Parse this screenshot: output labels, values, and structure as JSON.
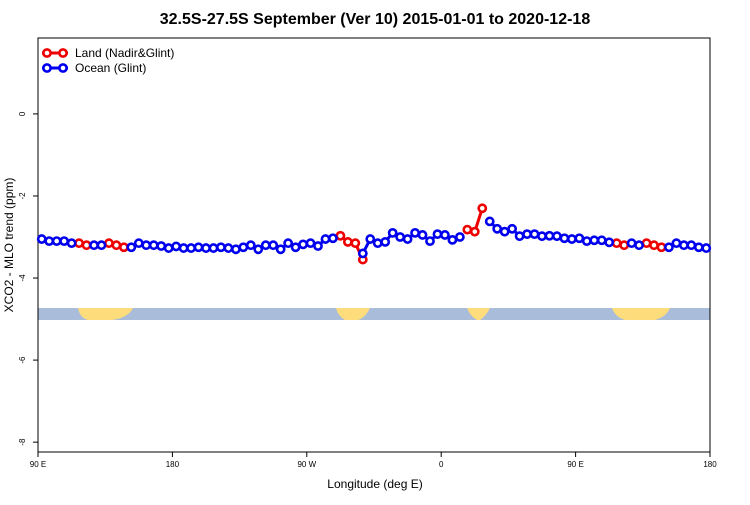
{
  "chart_data": {
    "type": "line",
    "title": "32.5S-27.5S September (Ver 10)   2015-01-01 to 2020-12-18",
    "x_label": "Longitude (deg E)",
    "y_label": "XCO2 - MLO trend (ppm)",
    "x": [
      92.5,
      97.5,
      102.5,
      107.5,
      112.5,
      117.5,
      122.5,
      127.5,
      132.5,
      137.5,
      142.5,
      147.5,
      152.5,
      157.5,
      162.5,
      167.5,
      172.5,
      177.5,
      182.5,
      187.5,
      192.5,
      197.5,
      202.5,
      207.5,
      212.5,
      217.5,
      222.5,
      227.5,
      232.5,
      237.5,
      242.5,
      247.5,
      252.5,
      257.5,
      262.5,
      267.5,
      272.5,
      277.5,
      282.5,
      287.5,
      292.5,
      297.5,
      302.5,
      307.5,
      312.5,
      317.5,
      322.5,
      327.5,
      332.5,
      337.5,
      342.5,
      347.5,
      352.5,
      357.5,
      362.5,
      367.5,
      372.5,
      377.5,
      382.5,
      387.5,
      392.5,
      397.5,
      402.5,
      407.5,
      412.5,
      417.5,
      422.5,
      427.5,
      432.5,
      437.5,
      442.5,
      447.5,
      452.5,
      457.5,
      462.5,
      467.5,
      472.5,
      477.5,
      482.5,
      487.5,
      492.5,
      497.5,
      502.5,
      507.5,
      512.5,
      517.5,
      522.5,
      527.5,
      532.5,
      537.5
    ],
    "series": [
      {
        "name": "Land (Nadir&Glint)",
        "color": "#ee0000",
        "values": [
          null,
          null,
          null,
          null,
          null,
          -3.15,
          -3.2,
          null,
          null,
          -3.15,
          -3.2,
          -3.25,
          null,
          null,
          null,
          null,
          null,
          null,
          null,
          null,
          null,
          null,
          null,
          null,
          null,
          null,
          null,
          null,
          null,
          null,
          null,
          null,
          null,
          null,
          null,
          null,
          null,
          null,
          null,
          null,
          -2.97,
          -3.12,
          -3.15,
          -3.55,
          null,
          null,
          null,
          null,
          null,
          null,
          null,
          null,
          null,
          null,
          null,
          null,
          null,
          -2.82,
          -2.87,
          -2.3,
          null,
          null,
          null,
          null,
          null,
          null,
          null,
          null,
          null,
          null,
          null,
          null,
          null,
          null,
          null,
          null,
          null,
          -3.15,
          -3.2,
          null,
          null,
          -3.15,
          -3.2,
          -3.25,
          null,
          null,
          null,
          null,
          null,
          null
        ]
      },
      {
        "name": "Ocean (Glint)",
        "color": "#0000ee",
        "values": [
          -3.05,
          -3.1,
          -3.1,
          -3.1,
          -3.15,
          null,
          null,
          -3.2,
          -3.2,
          null,
          null,
          null,
          -3.25,
          -3.15,
          -3.2,
          -3.2,
          -3.22,
          -3.27,
          -3.23,
          -3.27,
          -3.27,
          -3.25,
          -3.27,
          -3.27,
          -3.25,
          -3.27,
          -3.3,
          -3.25,
          -3.2,
          -3.3,
          -3.2,
          -3.2,
          -3.3,
          -3.15,
          -3.25,
          -3.18,
          -3.15,
          -3.22,
          -3.05,
          -3.03,
          null,
          null,
          null,
          -3.4,
          -3.05,
          -3.15,
          -3.12,
          -2.9,
          -3.0,
          -3.05,
          -2.9,
          -2.95,
          -3.1,
          -2.93,
          -2.95,
          -3.07,
          -3.0,
          null,
          null,
          null,
          -2.62,
          -2.8,
          -2.87,
          -2.8,
          -2.98,
          -2.93,
          -2.93,
          -2.98,
          -2.97,
          -2.98,
          -3.03,
          -3.05,
          -3.03,
          -3.1,
          -3.08,
          -3.08,
          -3.13,
          null,
          null,
          -3.15,
          -3.2,
          null,
          null,
          null,
          -3.25,
          -3.15,
          -3.2,
          -3.2,
          -3.25,
          -3.27
        ]
      }
    ],
    "xlim": [
      90,
      540
    ],
    "xticks": [
      {
        "value": 90,
        "label": "90 E"
      },
      {
        "value": 180,
        "label": "180"
      },
      {
        "value": 270,
        "label": "90 W"
      },
      {
        "value": 360,
        "label": "0"
      },
      {
        "value": 450,
        "label": "90 E"
      },
      {
        "value": 540,
        "label": "180"
      }
    ],
    "ylim": [
      -8.24,
      1.85
    ],
    "yticks": [
      0,
      -2,
      -4,
      -6,
      -8
    ],
    "legend": "top-left"
  }
}
